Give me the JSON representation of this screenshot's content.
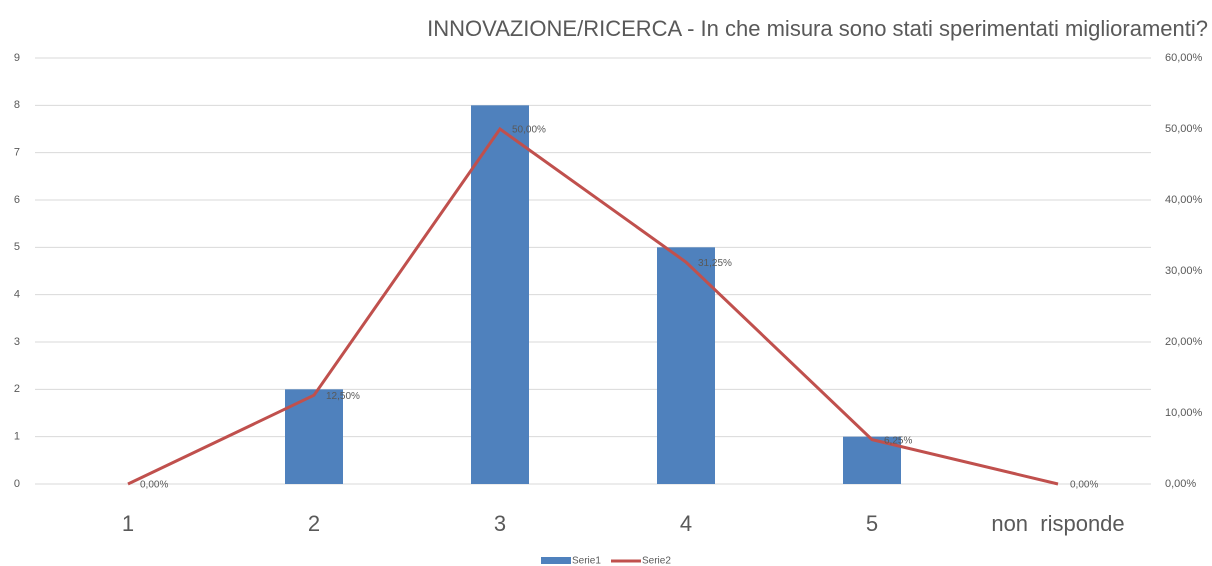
{
  "chart_data": {
    "type": "bar",
    "title": "INNOVAZIONE/RICERCA - In che misura sono stati sperimentati miglioramenti?",
    "categories": [
      "1",
      "2",
      "3",
      "4",
      "5",
      "non  risponde"
    ],
    "series": [
      {
        "name": "Serie1",
        "type": "bar",
        "color": "#4f81bd",
        "values": [
          0,
          2,
          8,
          5,
          1,
          0
        ]
      },
      {
        "name": "Serie2",
        "type": "line",
        "axis": "y2",
        "color": "#c0504d",
        "values": [
          0,
          12.5,
          50,
          31.25,
          6.25,
          0
        ],
        "value_labels": [
          "0,00%",
          "12,50%",
          "50,00%",
          "31,25%",
          "6,25%",
          "0,00%"
        ]
      }
    ],
    "ylim": [
      0,
      9
    ],
    "yticks": [
      0,
      1,
      2,
      3,
      4,
      5,
      6,
      7,
      8,
      9
    ],
    "y2lim": [
      0,
      60
    ],
    "y2ticks": [
      {
        "value": 0,
        "label": "0,00%"
      },
      {
        "value": 10,
        "label": "10,00%"
      },
      {
        "value": 20,
        "label": "20,00%"
      },
      {
        "value": 30,
        "label": "30,00%"
      },
      {
        "value": 40,
        "label": "40,00%"
      },
      {
        "value": 50,
        "label": "50,00%"
      },
      {
        "value": 60,
        "label": "60,00%"
      }
    ],
    "grid": true,
    "legend": "bottom"
  }
}
